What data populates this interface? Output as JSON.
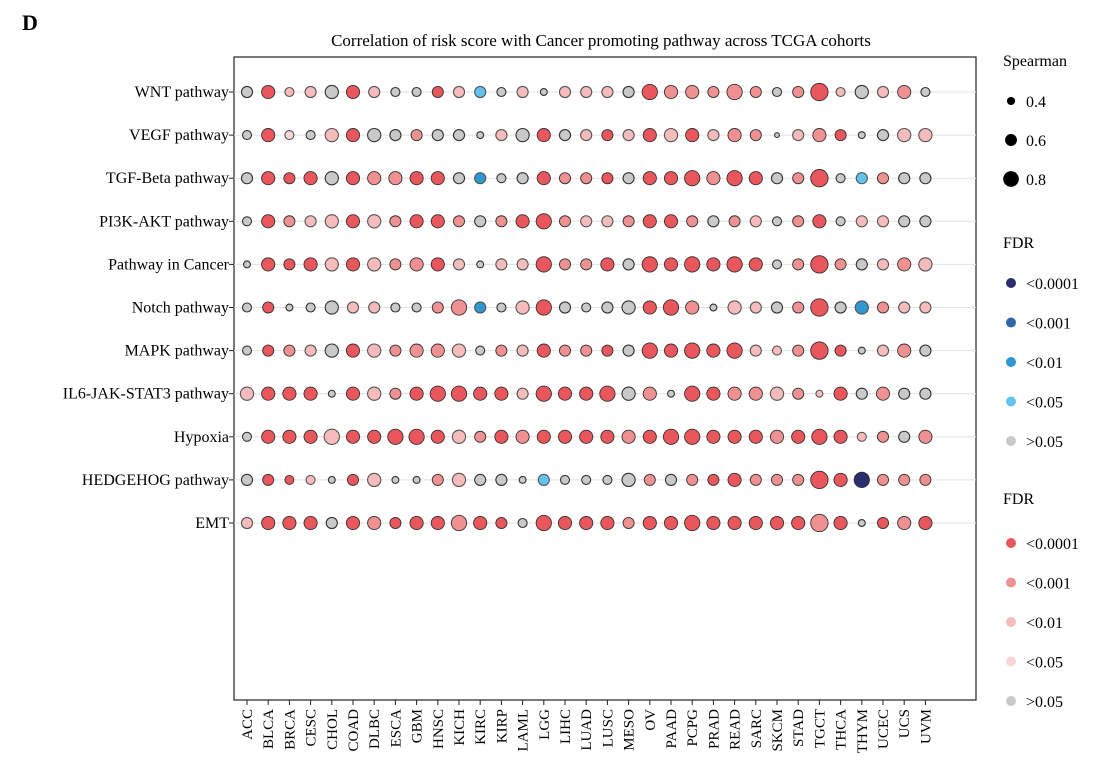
{
  "panel_label": "D",
  "chart_data": {
    "type": "scatter",
    "subtype": "dot-plot",
    "title": "Correlation of risk score with Cancer promoting pathway across TCGA cohorts",
    "x_categories": [
      "ACC",
      "BLCA",
      "BRCA",
      "CESC",
      "CHOL",
      "COAD",
      "DLBC",
      "ESCA",
      "GBM",
      "HNSC",
      "KICH",
      "KIRC",
      "KIRP",
      "LAML",
      "LGG",
      "LIHC",
      "LUAD",
      "LUSC",
      "MESO",
      "OV",
      "PAAD",
      "PCPG",
      "PRAD",
      "READ",
      "SARC",
      "SKCM",
      "STAD",
      "TGCT",
      "THCA",
      "THYM",
      "UCEC",
      "UCS",
      "UVM"
    ],
    "y_categories": [
      "WNT pathway",
      "VEGF pathway",
      "TGF-Beta pathway",
      "PI3K-AKT pathway",
      "Pathway in Cancer",
      "Notch pathway",
      "MAPK pathway",
      "IL6-JAK-STAT3 pathway",
      "Hypoxia",
      "HEDGEHOG pathway",
      "EMT"
    ],
    "grid": "horizontal",
    "size_legend": {
      "title": "Spearman",
      "values": [
        0.4,
        0.6,
        0.8
      ],
      "labels": [
        "0.4",
        "0.6",
        "0.8"
      ]
    },
    "negative_fdr_legend": {
      "title": "FDR",
      "labels": [
        "<0.0001",
        "<0.001",
        "<0.01",
        "<0.05",
        ">0.05"
      ],
      "colors": [
        "#2a2d6e",
        "#2f66a8",
        "#2f97d2",
        "#63c3ef",
        "#c9c9c9"
      ]
    },
    "positive_fdr_legend": {
      "title": "FDR",
      "labels": [
        "<0.0001",
        "<0.001",
        "<0.01",
        "<0.05",
        ">0.05"
      ],
      "colors": [
        "#e9575c",
        "#f09191",
        "#f6bcbc",
        "#fad5d5",
        "#c9c9c9"
      ]
    },
    "legend_position": "right",
    "rows": {
      "WNT pathway": {
        "rho": [
          0.5,
          0.6,
          0.4,
          0.5,
          0.6,
          0.6,
          0.5,
          0.4,
          0.4,
          0.5,
          0.5,
          0.5,
          0.4,
          0.5,
          0.3,
          0.5,
          0.5,
          0.5,
          0.5,
          0.7,
          0.6,
          0.6,
          0.5,
          0.7,
          0.5,
          0.4,
          0.5,
          0.8,
          0.4,
          0.6,
          0.5,
          0.6,
          0.4
        ],
        "fdr": [
          4,
          0,
          2,
          2,
          4,
          0,
          2,
          4,
          4,
          0,
          2,
          3,
          4,
          2,
          4,
          2,
          2,
          2,
          4,
          0,
          1,
          1,
          1,
          1,
          1,
          4,
          1,
          0,
          2,
          4,
          2,
          1,
          4
        ],
        "sign": [
          1,
          1,
          1,
          1,
          1,
          1,
          1,
          1,
          1,
          1,
          1,
          -1,
          1,
          1,
          1,
          1,
          1,
          1,
          1,
          1,
          1,
          1,
          1,
          1,
          1,
          1,
          1,
          1,
          1,
          1,
          1,
          1,
          1
        ]
      },
      "VEGF pathway": {
        "rho": [
          0.4,
          0.6,
          0.4,
          0.4,
          0.6,
          0.6,
          0.6,
          0.5,
          0.5,
          0.5,
          0.5,
          0.3,
          0.5,
          0.6,
          0.6,
          0.5,
          0.5,
          0.5,
          0.5,
          0.6,
          0.6,
          0.6,
          0.5,
          0.6,
          0.5,
          0.2,
          0.5,
          0.6,
          0.5,
          0.3,
          0.5,
          0.6,
          0.6
        ],
        "fdr": [
          4,
          0,
          3,
          4,
          2,
          0,
          4,
          4,
          1,
          4,
          4,
          4,
          2,
          4,
          0,
          4,
          2,
          0,
          2,
          0,
          2,
          0,
          2,
          1,
          1,
          4,
          2,
          1,
          0,
          4,
          4,
          2,
          2
        ],
        "sign": [
          1,
          1,
          1,
          1,
          1,
          1,
          1,
          1,
          1,
          1,
          1,
          1,
          1,
          1,
          1,
          1,
          1,
          1,
          1,
          1,
          1,
          1,
          1,
          1,
          1,
          1,
          1,
          1,
          1,
          1,
          1,
          1,
          1
        ]
      },
      "TGF-Beta pathway": {
        "rho": [
          0.5,
          0.6,
          0.5,
          0.6,
          0.6,
          0.6,
          0.6,
          0.6,
          0.6,
          0.6,
          0.5,
          0.5,
          0.4,
          0.5,
          0.6,
          0.5,
          0.5,
          0.5,
          0.5,
          0.6,
          0.6,
          0.7,
          0.6,
          0.7,
          0.6,
          0.5,
          0.5,
          0.8,
          0.4,
          0.5,
          0.5,
          0.5,
          0.5
        ],
        "fdr": [
          4,
          0,
          0,
          0,
          4,
          0,
          1,
          1,
          0,
          0,
          4,
          2,
          4,
          4,
          0,
          1,
          1,
          0,
          4,
          0,
          0,
          0,
          1,
          0,
          0,
          4,
          1,
          0,
          4,
          3,
          1,
          4,
          4
        ],
        "sign": [
          1,
          1,
          1,
          1,
          1,
          1,
          1,
          1,
          1,
          1,
          1,
          -1,
          1,
          1,
          1,
          1,
          1,
          1,
          1,
          1,
          1,
          1,
          1,
          1,
          1,
          1,
          1,
          1,
          1,
          -1,
          1,
          1,
          1
        ]
      },
      "PI3K-AKT pathway": {
        "rho": [
          0.4,
          0.6,
          0.5,
          0.5,
          0.6,
          0.6,
          0.6,
          0.5,
          0.6,
          0.6,
          0.5,
          0.5,
          0.5,
          0.6,
          0.7,
          0.5,
          0.5,
          0.5,
          0.5,
          0.6,
          0.6,
          0.5,
          0.5,
          0.5,
          0.5,
          0.4,
          0.5,
          0.6,
          0.4,
          0.5,
          0.5,
          0.5,
          0.5
        ],
        "fdr": [
          4,
          0,
          1,
          2,
          2,
          0,
          2,
          1,
          0,
          0,
          1,
          4,
          1,
          0,
          0,
          1,
          2,
          2,
          1,
          0,
          0,
          1,
          4,
          1,
          2,
          4,
          1,
          0,
          4,
          2,
          2,
          4,
          4
        ],
        "sign": [
          1,
          1,
          1,
          1,
          1,
          1,
          1,
          1,
          1,
          1,
          1,
          1,
          1,
          1,
          1,
          1,
          1,
          1,
          1,
          1,
          1,
          1,
          1,
          1,
          1,
          1,
          1,
          1,
          1,
          1,
          1,
          1,
          1
        ]
      },
      "Pathway in Cancer": {
        "rho": [
          0.3,
          0.6,
          0.5,
          0.6,
          0.6,
          0.6,
          0.6,
          0.5,
          0.6,
          0.6,
          0.5,
          0.3,
          0.5,
          0.5,
          0.7,
          0.5,
          0.5,
          0.6,
          0.5,
          0.7,
          0.6,
          0.7,
          0.6,
          0.7,
          0.6,
          0.4,
          0.5,
          0.8,
          0.5,
          0.5,
          0.5,
          0.6,
          0.6
        ],
        "fdr": [
          4,
          0,
          0,
          0,
          2,
          0,
          2,
          1,
          1,
          0,
          2,
          4,
          2,
          2,
          0,
          1,
          1,
          0,
          4,
          0,
          0,
          0,
          0,
          0,
          0,
          4,
          1,
          0,
          1,
          4,
          2,
          1,
          2
        ],
        "sign": [
          1,
          1,
          1,
          1,
          1,
          1,
          1,
          1,
          1,
          1,
          1,
          1,
          1,
          1,
          1,
          1,
          1,
          1,
          1,
          1,
          1,
          1,
          1,
          1,
          1,
          1,
          1,
          1,
          1,
          1,
          1,
          1,
          1
        ]
      },
      "Notch pathway": {
        "rho": [
          0.4,
          0.5,
          0.3,
          0.4,
          0.6,
          0.5,
          0.5,
          0.4,
          0.4,
          0.5,
          0.7,
          0.5,
          0.4,
          0.6,
          0.7,
          0.5,
          0.4,
          0.5,
          0.6,
          0.6,
          0.7,
          0.6,
          0.3,
          0.6,
          0.5,
          0.5,
          0.5,
          0.8,
          0.5,
          0.6,
          0.5,
          0.5,
          0.5
        ],
        "fdr": [
          4,
          0,
          4,
          4,
          4,
          2,
          2,
          4,
          4,
          1,
          1,
          2,
          4,
          2,
          0,
          4,
          4,
          4,
          4,
          0,
          0,
          1,
          4,
          2,
          2,
          4,
          1,
          0,
          4,
          2,
          1,
          2,
          2
        ],
        "sign": [
          1,
          1,
          1,
          1,
          1,
          1,
          1,
          1,
          1,
          1,
          1,
          -1,
          1,
          1,
          1,
          1,
          1,
          1,
          1,
          1,
          1,
          1,
          1,
          1,
          1,
          1,
          1,
          1,
          1,
          -1,
          1,
          1,
          1
        ]
      },
      "MAPK pathway": {
        "rho": [
          0.4,
          0.5,
          0.5,
          0.5,
          0.6,
          0.6,
          0.6,
          0.5,
          0.6,
          0.6,
          0.6,
          0.4,
          0.5,
          0.5,
          0.6,
          0.5,
          0.5,
          0.5,
          0.5,
          0.7,
          0.6,
          0.7,
          0.6,
          0.7,
          0.5,
          0.4,
          0.5,
          0.8,
          0.5,
          0.3,
          0.5,
          0.6,
          0.5
        ],
        "fdr": [
          4,
          0,
          1,
          2,
          4,
          0,
          2,
          1,
          1,
          1,
          2,
          4,
          1,
          2,
          0,
          1,
          1,
          0,
          4,
          0,
          0,
          0,
          0,
          0,
          2,
          2,
          1,
          0,
          0,
          4,
          2,
          1,
          4
        ],
        "sign": [
          1,
          1,
          1,
          1,
          1,
          1,
          1,
          1,
          1,
          1,
          1,
          1,
          1,
          1,
          1,
          1,
          1,
          1,
          1,
          1,
          1,
          1,
          1,
          1,
          1,
          1,
          1,
          1,
          1,
          1,
          1,
          1,
          1
        ]
      },
      "IL6-JAK-STAT3 pathway": {
        "rho": [
          0.6,
          0.6,
          0.6,
          0.6,
          0.3,
          0.6,
          0.6,
          0.5,
          0.6,
          0.7,
          0.7,
          0.6,
          0.6,
          0.5,
          0.7,
          0.6,
          0.6,
          0.7,
          0.6,
          0.6,
          0.3,
          0.7,
          0.6,
          0.6,
          0.6,
          0.6,
          0.5,
          0.3,
          0.6,
          0.5,
          0.6,
          0.5,
          0.5
        ],
        "fdr": [
          2,
          0,
          0,
          0,
          4,
          0,
          2,
          1,
          0,
          0,
          0,
          0,
          0,
          2,
          0,
          0,
          0,
          0,
          4,
          1,
          4,
          0,
          0,
          1,
          1,
          2,
          1,
          2,
          0,
          4,
          1,
          4,
          4
        ],
        "sign": [
          1,
          1,
          1,
          1,
          1,
          1,
          1,
          1,
          1,
          1,
          1,
          1,
          1,
          1,
          1,
          1,
          1,
          1,
          1,
          1,
          1,
          1,
          1,
          1,
          1,
          1,
          1,
          1,
          1,
          1,
          1,
          1,
          1
        ]
      },
      "Hypoxia": {
        "rho": [
          0.4,
          0.6,
          0.6,
          0.6,
          0.7,
          0.6,
          0.6,
          0.7,
          0.7,
          0.6,
          0.6,
          0.5,
          0.6,
          0.6,
          0.6,
          0.6,
          0.6,
          0.6,
          0.6,
          0.6,
          0.7,
          0.7,
          0.6,
          0.6,
          0.6,
          0.6,
          0.6,
          0.7,
          0.6,
          0.4,
          0.5,
          0.5,
          0.6
        ],
        "fdr": [
          4,
          0,
          0,
          0,
          2,
          0,
          0,
          0,
          0,
          0,
          2,
          1,
          0,
          1,
          0,
          0,
          0,
          0,
          1,
          0,
          0,
          0,
          0,
          0,
          0,
          1,
          0,
          0,
          0,
          2,
          1,
          4,
          1
        ],
        "sign": [
          1,
          1,
          1,
          1,
          1,
          1,
          1,
          1,
          1,
          1,
          1,
          1,
          1,
          1,
          1,
          1,
          1,
          1,
          1,
          1,
          1,
          1,
          1,
          1,
          1,
          1,
          1,
          1,
          1,
          1,
          1,
          1,
          1
        ]
      },
      "HEDGEHOG pathway": {
        "rho": [
          0.5,
          0.5,
          0.4,
          0.4,
          0.3,
          0.5,
          0.6,
          0.3,
          0.3,
          0.5,
          0.6,
          0.5,
          0.5,
          0.3,
          0.5,
          0.4,
          0.4,
          0.4,
          0.6,
          0.5,
          0.5,
          0.5,
          0.5,
          0.6,
          0.5,
          0.5,
          0.5,
          0.8,
          0.6,
          0.7,
          0.5,
          0.5,
          0.5
        ],
        "fdr": [
          4,
          0,
          0,
          2,
          4,
          0,
          2,
          4,
          4,
          1,
          2,
          4,
          4,
          4,
          3,
          4,
          4,
          4,
          4,
          1,
          4,
          1,
          0,
          0,
          1,
          1,
          1,
          0,
          0,
          0,
          1,
          1,
          1
        ],
        "sign": [
          1,
          1,
          1,
          1,
          1,
          1,
          1,
          1,
          1,
          1,
          1,
          1,
          1,
          1,
          -1,
          1,
          1,
          1,
          1,
          1,
          1,
          1,
          1,
          1,
          1,
          1,
          1,
          1,
          1,
          -1,
          1,
          1,
          1
        ]
      },
      "EMT": {
        "rho": [
          0.5,
          0.6,
          0.6,
          0.6,
          0.5,
          0.6,
          0.6,
          0.5,
          0.6,
          0.6,
          0.7,
          0.6,
          0.5,
          0.4,
          0.7,
          0.6,
          0.6,
          0.6,
          0.5,
          0.6,
          0.6,
          0.7,
          0.6,
          0.6,
          0.6,
          0.6,
          0.6,
          0.8,
          0.6,
          0.3,
          0.5,
          0.6,
          0.6
        ],
        "fdr": [
          2,
          0,
          0,
          0,
          4,
          0,
          1,
          0,
          0,
          0,
          1,
          0,
          0,
          4,
          0,
          0,
          0,
          0,
          1,
          0,
          0,
          0,
          0,
          0,
          0,
          0,
          0,
          1,
          0,
          4,
          0,
          1,
          0
        ],
        "sign": [
          1,
          1,
          1,
          1,
          1,
          1,
          1,
          1,
          1,
          1,
          1,
          1,
          1,
          1,
          1,
          1,
          1,
          1,
          1,
          1,
          1,
          1,
          1,
          1,
          1,
          1,
          1,
          1,
          1,
          1,
          1,
          1,
          1
        ]
      }
    }
  }
}
